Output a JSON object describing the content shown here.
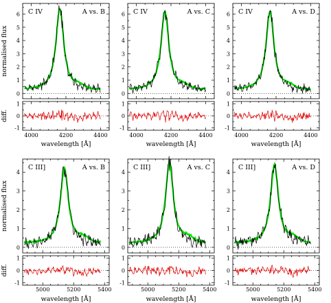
{
  "chart_data": [
    {
      "type": "line",
      "ion": "C IV",
      "comparison": "A  vs.  B",
      "xlabel": "wavelength [Å]",
      "ylabel": "normalised flux",
      "diff_ylabel": "diff.",
      "xlim": [
        3950,
        4450
      ],
      "ylim": [
        -0.4,
        6.8
      ],
      "diff_ylim": [
        -1.2,
        1.2
      ],
      "xticks": [
        4000,
        4200,
        4400
      ],
      "yticks": [
        0,
        1,
        2,
        3,
        4,
        5,
        6
      ],
      "diff_yticks": [
        -1,
        0,
        1
      ],
      "line_center": 4165,
      "peak_flux": 6.4,
      "continuum": 0.25,
      "series": [
        {
          "name": "A",
          "color": "#00e000"
        },
        {
          "name": "B",
          "color": "#000000"
        },
        {
          "name": "diff.",
          "color": "#e00000"
        }
      ]
    },
    {
      "type": "line",
      "ion": "C IV",
      "comparison": "A  vs.  C",
      "xlabel": "wavelength [Å]",
      "ylabel": "",
      "diff_ylabel": "",
      "xlim": [
        3950,
        4450
      ],
      "ylim": [
        -0.4,
        6.8
      ],
      "diff_ylim": [
        -1.2,
        1.2
      ],
      "xticks": [
        4000,
        4200,
        4400
      ],
      "yticks": [
        0,
        1,
        2,
        3,
        4,
        5,
        6
      ],
      "diff_yticks": [
        -1,
        0,
        1
      ],
      "line_center": 4165,
      "peak_flux": 6.2,
      "continuum": 0.25,
      "series": [
        {
          "name": "A",
          "color": "#00e000"
        },
        {
          "name": "C",
          "color": "#000000"
        },
        {
          "name": "diff.",
          "color": "#e00000"
        }
      ]
    },
    {
      "type": "line",
      "ion": "C IV",
      "comparison": "A  vs.  D",
      "xlabel": "wavelength [Å]",
      "ylabel": "",
      "diff_ylabel": "",
      "xlim": [
        3950,
        4450
      ],
      "ylim": [
        -0.4,
        6.8
      ],
      "diff_ylim": [
        -1.2,
        1.2
      ],
      "xticks": [
        4000,
        4200,
        4400
      ],
      "yticks": [
        0,
        1,
        2,
        3,
        4,
        5,
        6
      ],
      "diff_yticks": [
        -1,
        0,
        1
      ],
      "line_center": 4165,
      "peak_flux": 6.2,
      "continuum": 0.25,
      "series": [
        {
          "name": "A",
          "color": "#00e000"
        },
        {
          "name": "D",
          "color": "#000000"
        },
        {
          "name": "diff.",
          "color": "#e00000"
        }
      ]
    },
    {
      "type": "line",
      "ion": "C III]",
      "comparison": "A  vs.  B",
      "xlabel": "wavelength [Å]",
      "ylabel": "normalised flux",
      "diff_ylabel": "diff.",
      "xlim": [
        4870,
        5430
      ],
      "ylim": [
        -0.3,
        4.7
      ],
      "diff_ylim": [
        -1.2,
        1.2
      ],
      "xticks": [
        5000,
        5200,
        5400
      ],
      "yticks": [
        0,
        1,
        2,
        3,
        4
      ],
      "diff_yticks": [
        -1,
        0,
        1
      ],
      "line_center": 5140,
      "peak_flux": 4.25,
      "continuum": 0.2,
      "series": [
        {
          "name": "A",
          "color": "#00e000"
        },
        {
          "name": "B",
          "color": "#000000"
        },
        {
          "name": "diff.",
          "color": "#e00000"
        }
      ]
    },
    {
      "type": "line",
      "ion": "C III]",
      "comparison": "A  vs.  C",
      "xlabel": "wavelength [Å]",
      "ylabel": "",
      "diff_ylabel": "",
      "xlim": [
        4870,
        5430
      ],
      "ylim": [
        -0.3,
        4.7
      ],
      "diff_ylim": [
        -1.2,
        1.2
      ],
      "xticks": [
        5000,
        5200,
        5400
      ],
      "yticks": [
        0,
        1,
        2,
        3,
        4
      ],
      "diff_yticks": [
        -1,
        0,
        1
      ],
      "line_center": 5140,
      "peak_flux": 4.5,
      "continuum": 0.2,
      "series": [
        {
          "name": "A",
          "color": "#00e000"
        },
        {
          "name": "C",
          "color": "#000000"
        },
        {
          "name": "diff.",
          "color": "#e00000"
        }
      ]
    },
    {
      "type": "line",
      "ion": "C III]",
      "comparison": "A  vs.  D",
      "xlabel": "wavelength [Å]",
      "ylabel": "",
      "diff_ylabel": "",
      "xlim": [
        4870,
        5430
      ],
      "ylim": [
        -0.3,
        4.7
      ],
      "diff_ylim": [
        -1.2,
        1.2
      ],
      "xticks": [
        5000,
        5200,
        5400
      ],
      "yticks": [
        0,
        1,
        2,
        3,
        4
      ],
      "diff_yticks": [
        -1,
        0,
        1
      ],
      "line_center": 5140,
      "peak_flux": 4.4,
      "continuum": 0.2,
      "series": [
        {
          "name": "A",
          "color": "#00e000"
        },
        {
          "name": "D",
          "color": "#000000"
        },
        {
          "name": "diff.",
          "color": "#e00000"
        }
      ]
    }
  ]
}
